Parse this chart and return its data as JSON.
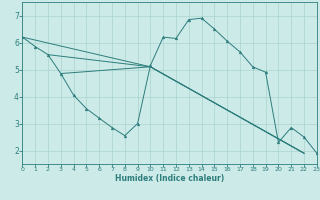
{
  "bg_color": "#cceae7",
  "grid_color": "#aad4d0",
  "line_color": "#2d7d7d",
  "xlabel": "Humidex (Indice chaleur)",
  "xlim": [
    0,
    23
  ],
  "ylim": [
    1.5,
    7.5
  ],
  "yticks": [
    2,
    3,
    4,
    5,
    6,
    7
  ],
  "xticks": [
    0,
    1,
    2,
    3,
    4,
    5,
    6,
    7,
    8,
    9,
    10,
    11,
    12,
    13,
    14,
    15,
    16,
    17,
    18,
    19,
    20,
    21,
    22,
    23
  ],
  "main_line": {
    "x": [
      0,
      1,
      2,
      3,
      4,
      5,
      6,
      7,
      8,
      9,
      10,
      11,
      12,
      13,
      14,
      15,
      16,
      17,
      18,
      19,
      20,
      21,
      22,
      23
    ],
    "y": [
      6.2,
      5.85,
      5.55,
      4.85,
      4.05,
      3.55,
      3.2,
      2.85,
      2.55,
      3.0,
      5.15,
      6.2,
      6.15,
      6.85,
      6.9,
      6.5,
      6.05,
      5.65,
      5.1,
      4.9,
      2.3,
      2.85,
      2.5,
      1.9
    ]
  },
  "straight_lines": [
    {
      "x": [
        0,
        10,
        22
      ],
      "y": [
        6.2,
        5.1,
        1.9
      ]
    },
    {
      "x": [
        2,
        10,
        22
      ],
      "y": [
        5.55,
        5.1,
        1.9
      ]
    },
    {
      "x": [
        3,
        10,
        22
      ],
      "y": [
        4.85,
        5.1,
        1.9
      ]
    }
  ]
}
